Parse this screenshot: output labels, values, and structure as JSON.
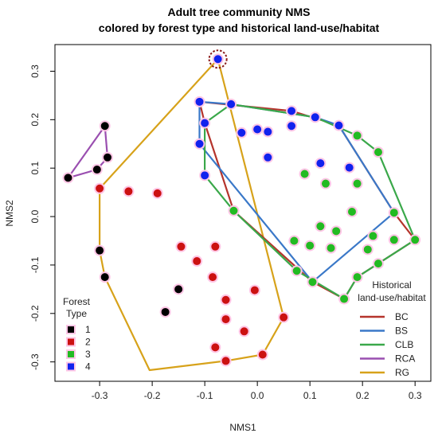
{
  "chart_data": {
    "type": "scatter",
    "title_line1": "Adult tree community NMS",
    "title_line2": "colored by forest type and historical land-use/habitat",
    "xlabel": "NMS1",
    "ylabel": "NMS2",
    "xlim": [
      -0.385,
      0.33
    ],
    "ylim": [
      -0.34,
      0.355
    ],
    "xticks": [
      -0.3,
      -0.2,
      -0.1,
      0.0,
      0.1,
      0.2,
      0.3
    ],
    "xtick_labels": [
      "-0.3",
      "-0.2",
      "-0.1",
      "0.0",
      "0.1",
      "0.2",
      "0.3"
    ],
    "yticks": [
      -0.3,
      -0.2,
      -0.1,
      0.0,
      0.1,
      0.2,
      0.3
    ],
    "ytick_labels": [
      "-0.3",
      "-0.2",
      "-0.1",
      "0.0",
      "0.1",
      "0.2",
      "0.3"
    ],
    "forest_legend": {
      "title_line1": "Forest",
      "title_line2": "Type",
      "position": "bottom-left",
      "entries": [
        {
          "label": "1",
          "color": "#000000"
        },
        {
          "label": "2",
          "color": "#cc1111"
        },
        {
          "label": "3",
          "color": "#22bb22"
        },
        {
          "label": "4",
          "color": "#1122ee"
        }
      ]
    },
    "hull_legend": {
      "title_line1": "Historical",
      "title_line2": "land-use/habitat",
      "position": "bottom-right",
      "entries": [
        {
          "label": "BC",
          "color": "#b5342c"
        },
        {
          "label": "BS",
          "color": "#3a78c8"
        },
        {
          "label": "CLB",
          "color": "#3aa84a"
        },
        {
          "label": "RCA",
          "color": "#9a4fb0"
        },
        {
          "label": "RG",
          "color": "#d7a21a"
        }
      ]
    },
    "series": [
      {
        "forest_type": "1",
        "color": "#000000",
        "points": [
          [
            -0.36,
            0.08
          ],
          [
            -0.29,
            0.187
          ],
          [
            -0.285,
            0.122
          ],
          [
            -0.305,
            0.097
          ],
          [
            -0.3,
            -0.07
          ],
          [
            -0.29,
            -0.125
          ],
          [
            -0.15,
            -0.15
          ],
          [
            -0.175,
            -0.197
          ]
        ]
      },
      {
        "forest_type": "2",
        "color": "#cc1111",
        "points": [
          [
            -0.3,
            0.058
          ],
          [
            -0.245,
            0.052
          ],
          [
            -0.19,
            0.048
          ],
          [
            -0.145,
            -0.062
          ],
          [
            -0.115,
            -0.092
          ],
          [
            -0.08,
            -0.062
          ],
          [
            -0.085,
            -0.125
          ],
          [
            -0.005,
            -0.152
          ],
          [
            -0.06,
            -0.172
          ],
          [
            -0.06,
            -0.212
          ],
          [
            -0.025,
            -0.237
          ],
          [
            0.05,
            -0.208
          ],
          [
            -0.08,
            -0.27
          ],
          [
            0.01,
            -0.285
          ],
          [
            -0.06,
            -0.298
          ]
        ]
      },
      {
        "forest_type": "3",
        "color": "#22bb22",
        "points": [
          [
            0.09,
            0.088
          ],
          [
            0.19,
            0.167
          ],
          [
            0.23,
            0.133
          ],
          [
            0.13,
            0.068
          ],
          [
            0.19,
            0.068
          ],
          [
            0.26,
            0.008
          ],
          [
            0.18,
            0.01
          ],
          [
            0.12,
            -0.02
          ],
          [
            0.15,
            -0.03
          ],
          [
            0.22,
            -0.04
          ],
          [
            0.07,
            -0.05
          ],
          [
            0.1,
            -0.06
          ],
          [
            0.14,
            -0.065
          ],
          [
            0.21,
            -0.068
          ],
          [
            0.3,
            -0.048
          ],
          [
            0.26,
            -0.048
          ],
          [
            0.23,
            -0.097
          ],
          [
            0.19,
            -0.125
          ],
          [
            0.075,
            -0.112
          ],
          [
            0.105,
            -0.135
          ],
          [
            0.165,
            -0.17
          ],
          [
            -0.045,
            0.012
          ]
        ]
      },
      {
        "forest_type": "4",
        "color": "#1122ee",
        "points": [
          [
            -0.075,
            0.325
          ],
          [
            -0.11,
            0.237
          ],
          [
            -0.05,
            0.232
          ],
          [
            -0.1,
            0.193
          ],
          [
            -0.11,
            0.15
          ],
          [
            0.0,
            0.18
          ],
          [
            0.02,
            0.175
          ],
          [
            0.065,
            0.218
          ],
          [
            0.11,
            0.205
          ],
          [
            0.155,
            0.188
          ],
          [
            0.065,
            0.187
          ],
          [
            0.02,
            0.122
          ],
          [
            0.12,
            0.11
          ],
          [
            0.175,
            0.101
          ],
          [
            -0.1,
            0.085
          ],
          [
            -0.03,
            0.173
          ]
        ]
      }
    ],
    "hulls": [
      {
        "name": "RCA",
        "color": "#9a4fb0",
        "points": [
          [
            -0.36,
            0.08
          ],
          [
            -0.29,
            0.187
          ],
          [
            -0.285,
            0.122
          ],
          [
            -0.305,
            0.097
          ]
        ]
      },
      {
        "name": "RG",
        "color": "#d7a21a",
        "points": [
          [
            -0.075,
            0.325
          ],
          [
            -0.3,
            0.058
          ],
          [
            -0.3,
            -0.07
          ],
          [
            -0.29,
            -0.125
          ],
          [
            -0.205,
            -0.317
          ],
          [
            -0.06,
            -0.298
          ],
          [
            0.01,
            -0.285
          ],
          [
            0.05,
            -0.208
          ]
        ]
      },
      {
        "name": "BC",
        "color": "#b5342c",
        "points": [
          [
            -0.11,
            0.237
          ],
          [
            0.065,
            0.218
          ],
          [
            0.155,
            0.188
          ],
          [
            0.26,
            0.008
          ],
          [
            0.3,
            -0.048
          ],
          [
            0.23,
            -0.097
          ],
          [
            0.19,
            -0.125
          ],
          [
            0.165,
            -0.17
          ],
          [
            0.105,
            -0.135
          ],
          [
            -0.045,
            0.012
          ],
          [
            -0.1,
            0.193
          ]
        ]
      },
      {
        "name": "BS",
        "color": "#3a78c8",
        "points": [
          [
            -0.11,
            0.237
          ],
          [
            -0.05,
            0.232
          ],
          [
            0.11,
            0.205
          ],
          [
            0.155,
            0.188
          ],
          [
            0.26,
            0.008
          ],
          [
            0.105,
            -0.135
          ],
          [
            -0.11,
            0.15
          ]
        ]
      },
      {
        "name": "CLB",
        "color": "#3aa84a",
        "points": [
          [
            -0.05,
            0.232
          ],
          [
            0.11,
            0.205
          ],
          [
            0.19,
            0.167
          ],
          [
            0.23,
            0.133
          ],
          [
            0.3,
            -0.048
          ],
          [
            0.19,
            -0.125
          ],
          [
            0.165,
            -0.17
          ],
          [
            0.075,
            -0.112
          ],
          [
            -0.045,
            0.012
          ],
          [
            -0.1,
            0.085
          ],
          [
            -0.1,
            0.193
          ]
        ]
      }
    ],
    "highlight": {
      "point": [
        -0.075,
        0.325
      ],
      "color": "#8b1a1a"
    }
  }
}
